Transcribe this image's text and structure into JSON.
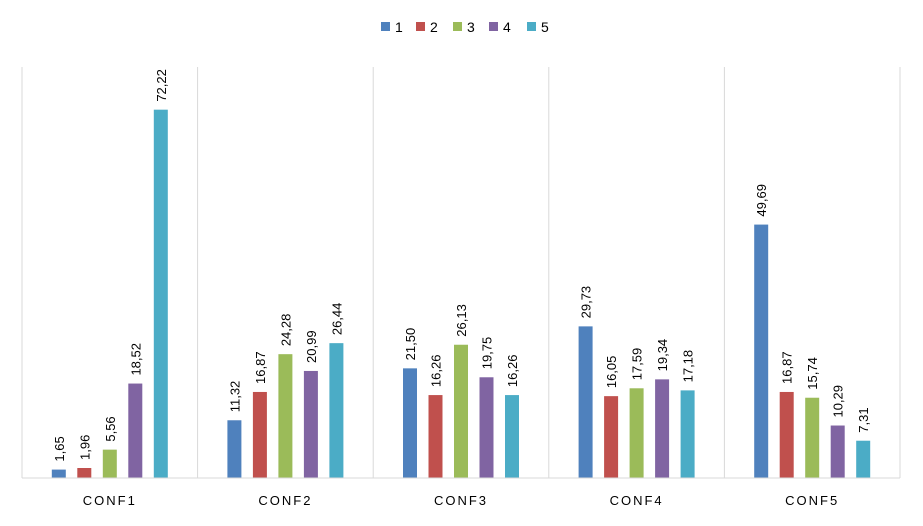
{
  "chart_data": {
    "type": "bar",
    "categories": [
      "CONF1",
      "CONF2",
      "CONF3",
      "CONF4",
      "CONF5"
    ],
    "series": [
      {
        "name": "1",
        "color": "#4F81BD",
        "values": [
          1.65,
          11.32,
          21.5,
          29.73,
          49.69
        ]
      },
      {
        "name": "2",
        "color": "#C0504D",
        "values": [
          1.96,
          16.87,
          16.26,
          16.05,
          16.87
        ]
      },
      {
        "name": "3",
        "color": "#9BBB59",
        "values": [
          5.56,
          24.28,
          26.13,
          17.59,
          15.74
        ]
      },
      {
        "name": "4",
        "color": "#8064A2",
        "values": [
          18.52,
          20.99,
          19.75,
          19.34,
          10.29
        ]
      },
      {
        "name": "5",
        "color": "#4BACC6",
        "values": [
          72.22,
          26.44,
          16.26,
          17.18,
          7.31
        ]
      }
    ],
    "data_labels": [
      [
        "1,65",
        "11,32",
        "21,50",
        "29,73",
        "49,69"
      ],
      [
        "1,96",
        "16,87",
        "16,26",
        "16,05",
        "16,87"
      ],
      [
        "5,56",
        "24,28",
        "26,13",
        "17,59",
        "15,74"
      ],
      [
        "18,52",
        "20,99",
        "19,75",
        "19,34",
        "10,29"
      ],
      [
        "72,22",
        "26,44",
        "16,26",
        "17,18",
        "7,31"
      ]
    ],
    "title": "",
    "xlabel": "",
    "ylabel": "",
    "ylim": [
      0,
      80
    ],
    "grid": "vertical category separators",
    "legend": "top-center"
  }
}
